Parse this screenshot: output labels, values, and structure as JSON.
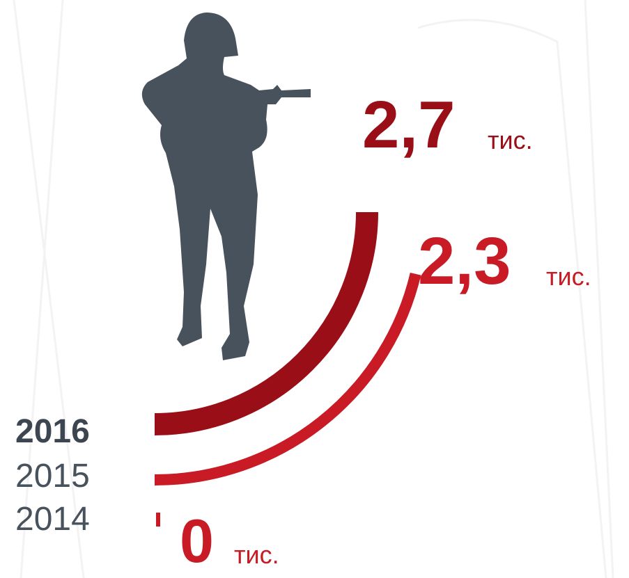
{
  "chart_data": {
    "type": "arc",
    "categories": [
      "2016",
      "2015",
      "2014"
    ],
    "values": [
      2.7,
      2.3,
      0
    ],
    "value_labels": [
      "2,7",
      "2,3",
      "0"
    ],
    "unit": "тис.",
    "colors": [
      "#9a0e17",
      "#c81b25",
      "#c81b25"
    ],
    "ylim": [
      0,
      2.7
    ]
  }
}
